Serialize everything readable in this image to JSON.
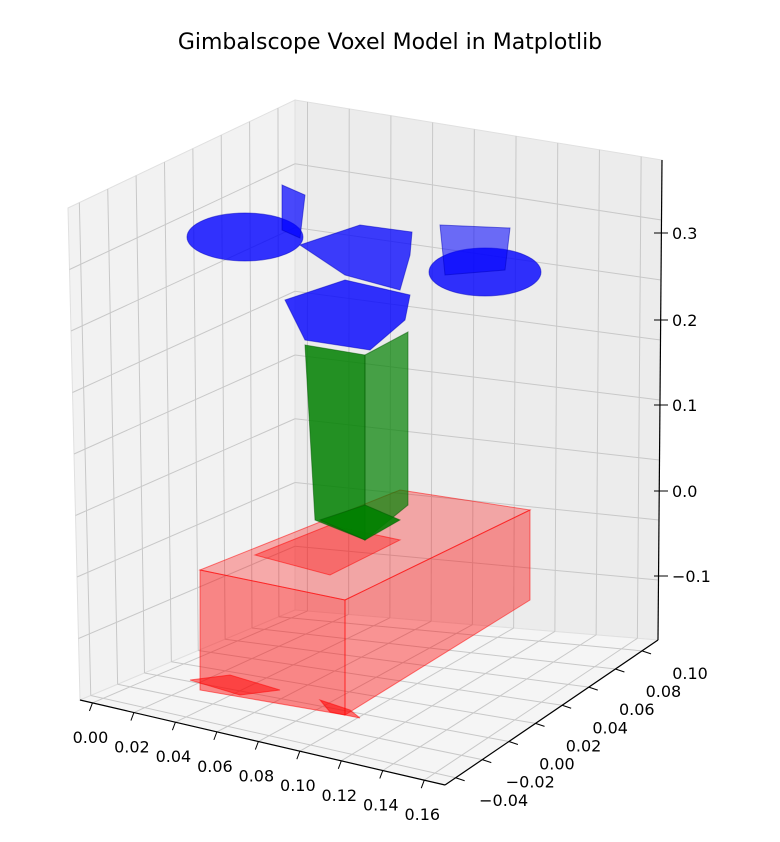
{
  "chart_data": {
    "type": "voxel-3d",
    "title": "Gimbalscope Voxel Model in Matplotlib",
    "xlabel": "",
    "ylabel": "",
    "zlabel": "",
    "x_ticks": [
      "0.00",
      "0.02",
      "0.04",
      "0.06",
      "0.08",
      "0.10",
      "0.12",
      "0.14",
      "0.16"
    ],
    "y_ticks": [
      "−0.04",
      "−0.02",
      "0.00",
      "0.02",
      "0.04",
      "0.06",
      "0.08",
      "0.10"
    ],
    "z_ticks": [
      "−0.1",
      "0.0",
      "0.1",
      "0.2",
      "0.3"
    ],
    "grid": true,
    "parts": [
      {
        "name": "",
        "color": "#ff0000"
      },
      {
        "name": "",
        "color": "#008000"
      },
      {
        "name": "",
        "color": "#0000ff"
      }
    ]
  }
}
